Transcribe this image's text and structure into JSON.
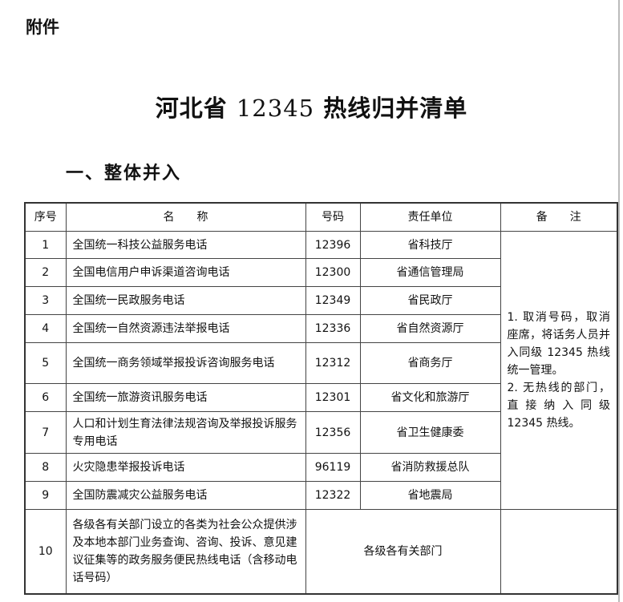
{
  "attachment_label": "附件",
  "title_prefix": "河北省",
  "title_number": "12345",
  "title_suffix": "热线归并清单",
  "section_heading": "一、整体并入",
  "table": {
    "headers": [
      "序号",
      "名　　称",
      "号码",
      "责任单位",
      "备　　注"
    ],
    "rows": [
      {
        "no": "1",
        "name": "全国统一科技公益服务电话",
        "number": "12396",
        "unit": "省科技厅"
      },
      {
        "no": "2",
        "name": "全国电信用户申诉渠道咨询电话",
        "number": "12300",
        "unit": "省通信管理局"
      },
      {
        "no": "3",
        "name": "全国统一民政服务电话",
        "number": "12349",
        "unit": "省民政厅"
      },
      {
        "no": "4",
        "name": "全国统一自然资源违法举报电话",
        "number": "12336",
        "unit": "省自然资源厅"
      },
      {
        "no": "5",
        "name": "全国统一商务领域举报投诉咨询服务电话",
        "number": "12312",
        "unit": "省商务厅"
      },
      {
        "no": "6",
        "name": "全国统一旅游资讯服务电话",
        "number": "12301",
        "unit": "省文化和旅游厅"
      },
      {
        "no": "7",
        "name": "人口和计划生育法律法规咨询及举报投诉服务专用电话",
        "number": "12356",
        "unit": "省卫生健康委"
      },
      {
        "no": "8",
        "name": "火灾隐患举报投诉电话",
        "number": "96119",
        "unit": "省消防救援总队"
      },
      {
        "no": "9",
        "name": "全国防震减灾公益服务电话",
        "number": "12322",
        "unit": "省地震局"
      },
      {
        "no": "10",
        "name": "各级各有关部门设立的各类为社会公众提供涉及本地本部门业务查询、咨询、投诉、意见建议征集等的政务服务便民热线电话（含移动电话号码）",
        "unit": "各级各有关部门"
      }
    ],
    "remark": "1. 取消号码，取消座席，将话务人员并入同级 12345 热线统一管理。\n2. 无热线的部门，直接纳入同级 12345 热线。"
  }
}
